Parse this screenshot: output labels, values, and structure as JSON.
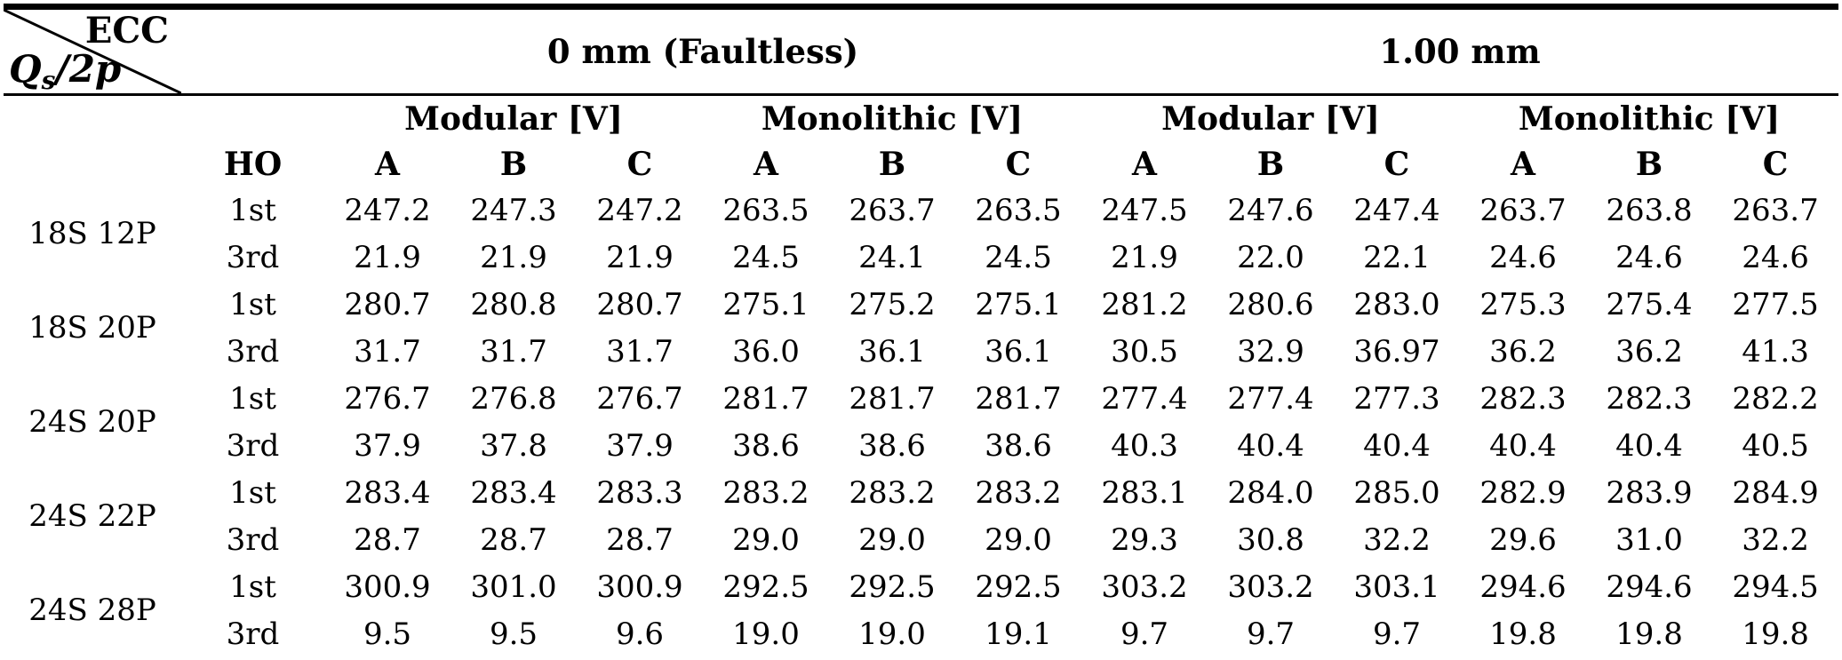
{
  "table": {
    "corner": {
      "top_label": "ECC",
      "q": "Q",
      "q_sub": "s",
      "q_rest": "/2p"
    },
    "ecc_groups": [
      {
        "label": "0 mm (Faultless)"
      },
      {
        "label": "1.00 mm"
      }
    ],
    "subgroups": [
      "Modular [V]",
      "Monolithic [V]",
      "Modular [V]",
      "Monolithic [V]"
    ],
    "ho_header": "HO",
    "phase_headers": [
      "A",
      "B",
      "C",
      "A",
      "B",
      "C",
      "A",
      "B",
      "C",
      "A",
      "B",
      "C"
    ],
    "row_groups": [
      {
        "label": "18S 12P",
        "rows": [
          {
            "ho": "1st",
            "values": [
              "247.2",
              "247.3",
              "247.2",
              "263.5",
              "263.7",
              "263.5",
              "247.5",
              "247.6",
              "247.4",
              "263.7",
              "263.8",
              "263.7"
            ]
          },
          {
            "ho": "3rd",
            "values": [
              "21.9",
              "21.9",
              "21.9",
              "24.5",
              "24.1",
              "24.5",
              "21.9",
              "22.0",
              "22.1",
              "24.6",
              "24.6",
              "24.6"
            ]
          }
        ]
      },
      {
        "label": "18S 20P",
        "rows": [
          {
            "ho": "1st",
            "values": [
              "280.7",
              "280.8",
              "280.7",
              "275.1",
              "275.2",
              "275.1",
              "281.2",
              "280.6",
              "283.0",
              "275.3",
              "275.4",
              "277.5"
            ]
          },
          {
            "ho": "3rd",
            "values": [
              "31.7",
              "31.7",
              "31.7",
              "36.0",
              "36.1",
              "36.1",
              "30.5",
              "32.9",
              "36.97",
              "36.2",
              "36.2",
              "41.3"
            ]
          }
        ]
      },
      {
        "label": "24S 20P",
        "rows": [
          {
            "ho": "1st",
            "values": [
              "276.7",
              "276.8",
              "276.7",
              "281.7",
              "281.7",
              "281.7",
              "277.4",
              "277.4",
              "277.3",
              "282.3",
              "282.3",
              "282.2"
            ]
          },
          {
            "ho": "3rd",
            "values": [
              "37.9",
              "37.8",
              "37.9",
              "38.6",
              "38.6",
              "38.6",
              "40.3",
              "40.4",
              "40.4",
              "40.4",
              "40.4",
              "40.5"
            ]
          }
        ]
      },
      {
        "label": "24S 22P",
        "rows": [
          {
            "ho": "1st",
            "values": [
              "283.4",
              "283.4",
              "283.3",
              "283.2",
              "283.2",
              "283.2",
              "283.1",
              "284.0",
              "285.0",
              "282.9",
              "283.9",
              "284.9"
            ]
          },
          {
            "ho": "3rd",
            "values": [
              "28.7",
              "28.7",
              "28.7",
              "29.0",
              "29.0",
              "29.0",
              "29.3",
              "30.8",
              "32.2",
              "29.6",
              "31.0",
              "32.2"
            ]
          }
        ]
      },
      {
        "label": "24S 28P",
        "rows": [
          {
            "ho": "1st",
            "values": [
              "300.9",
              "301.0",
              "300.9",
              "292.5",
              "292.5",
              "292.5",
              "303.2",
              "303.2",
              "303.1",
              "294.6",
              "294.6",
              "294.5"
            ]
          },
          {
            "ho": "3rd",
            "values": [
              "9.5",
              "9.5",
              "9.6",
              "19.0",
              "19.0",
              "19.1",
              "9.7",
              "9.7",
              "9.7",
              "19.8",
              "19.8",
              "19.8"
            ]
          }
        ]
      }
    ]
  }
}
